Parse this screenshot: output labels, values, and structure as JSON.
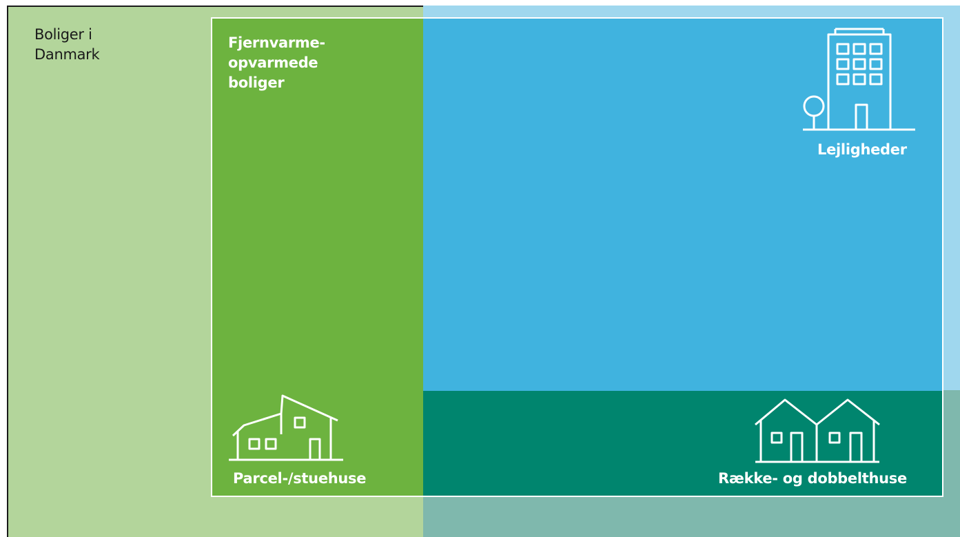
{
  "diagram": {
    "outer_label": "Boliger i\nDanmark",
    "district_heating_label": "Fjernvarme-\nopvarmede\nboliger",
    "categories": {
      "detached": "Parcel-/stuehuse",
      "apartments": "Lejligheder",
      "terraced": "Række- og dobbelthuse"
    },
    "colors": {
      "all_dwellings_detached": "#b3d59b",
      "all_dwellings_apartments": "#9fd7ee",
      "all_dwellings_terraced": "#7fb8ad",
      "district_heated_detached": "#6db33f",
      "district_heated_apartments": "#40b3df",
      "district_heated_terraced": "#00856e",
      "frame_border": "#1a1a1a",
      "inner_border": "#ffffff"
    }
  }
}
